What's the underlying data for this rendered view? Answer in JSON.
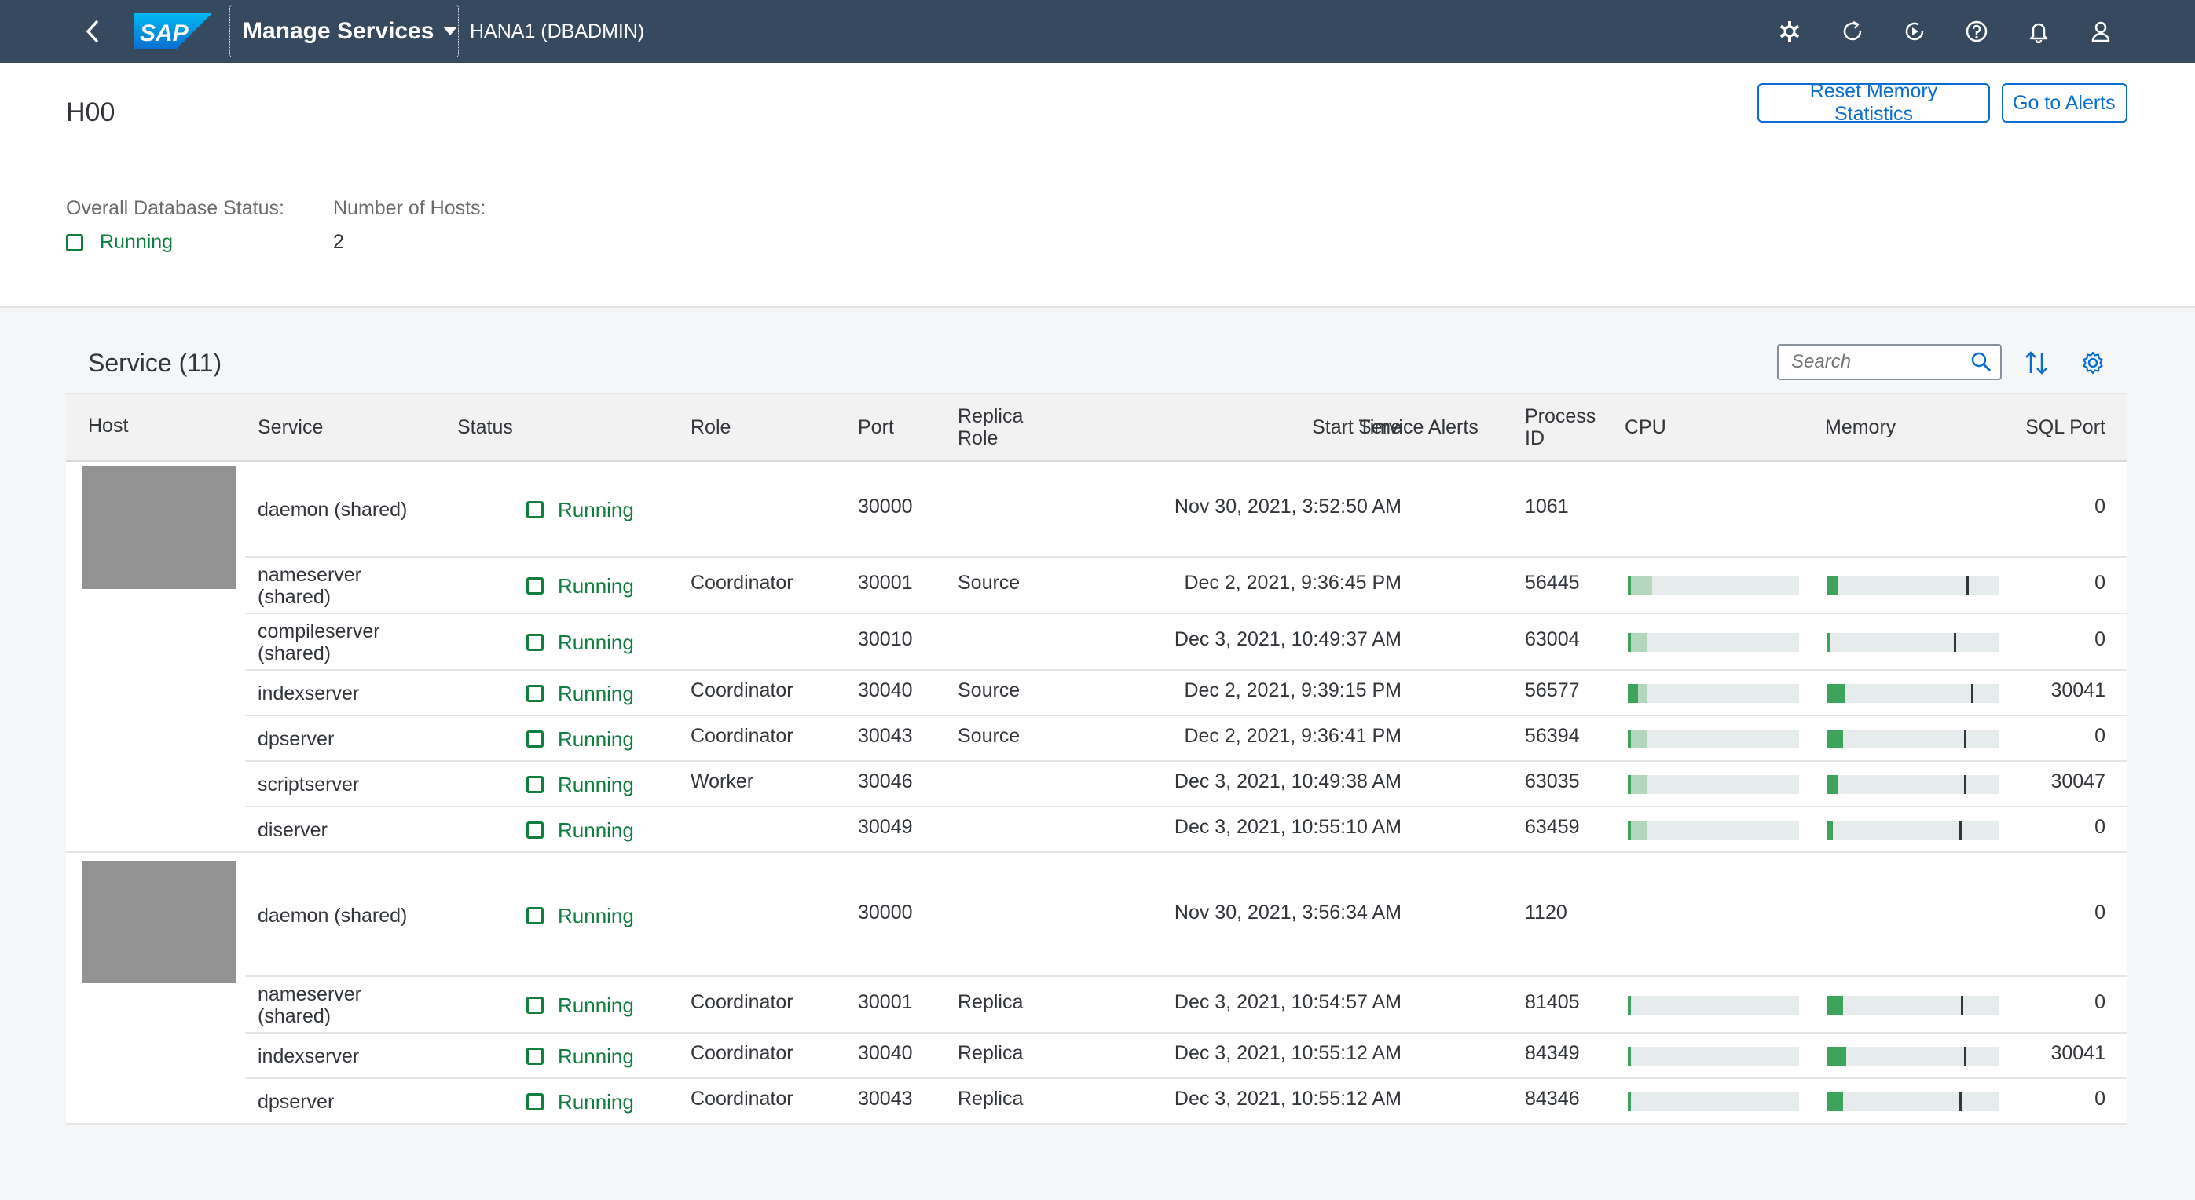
{
  "shell": {
    "back_label": "Back",
    "logo_text": "SAP",
    "app_menu_label": "Manage Services",
    "system": "HANA1 (DBADMIN)",
    "icons": [
      "product-switch-icon",
      "refresh-icon",
      "run-icon",
      "help-icon",
      "notification-bell-icon",
      "user-avatar-icon"
    ]
  },
  "header": {
    "title": "H00",
    "reset_memory_label": "Reset Memory Statistics",
    "go_to_alerts_label": "Go to Alerts",
    "overall_status_label": "Overall Database Status:",
    "overall_status_value": "Running",
    "hosts_label": "Number of Hosts:",
    "hosts_value": "2"
  },
  "table": {
    "title": "Service (11)",
    "search_placeholder": "Search",
    "columns": {
      "host": "Host",
      "service": "Service",
      "status": "Status",
      "role": "Role",
      "port": "Port",
      "replica_role_1": "Replica",
      "replica_role_2": "Role",
      "start_time": "Start Time",
      "service_alerts": "Service Alerts",
      "process_id_1": "Process",
      "process_id_2": "ID",
      "cpu": "CPU",
      "memory": "Memory",
      "sql_port": "SQL Port"
    },
    "groups": [
      {
        "rows": [
          {
            "service": "daemon (shared)",
            "status": "Running",
            "role": "",
            "port": "30000",
            "replica": "",
            "start": "Nov 30, 2021, 3:52:50 AM",
            "pid": "1061",
            "sql": "0",
            "cpu": null,
            "mem": null
          },
          {
            "service": "nameserver (shared)",
            "status": "Running",
            "role": "Coordinator",
            "port": "30001",
            "replica": "Source",
            "start": "Dec 2, 2021, 9:36:45 PM",
            "pid": "56445",
            "sql": "0",
            "cpu": [
              0.14,
              0.02
            ],
            "mem": [
              0.06,
              0.81
            ]
          },
          {
            "service": "compileserver (shared)",
            "status": "Running",
            "role": "",
            "port": "30010",
            "replica": "",
            "start": "Dec 3, 2021, 10:49:37 AM",
            "pid": "63004",
            "sql": "0",
            "cpu": [
              0.11,
              0.02
            ],
            "mem": [
              0.02,
              0.74
            ]
          },
          {
            "service": "indexserver",
            "status": "Running",
            "role": "Coordinator",
            "port": "30040",
            "replica": "Source",
            "start": "Dec 2, 2021, 9:39:15 PM",
            "pid": "56577",
            "sql": "30041",
            "cpu": [
              0.11,
              0.06
            ],
            "mem": [
              0.1,
              0.84
            ]
          },
          {
            "service": "dpserver",
            "status": "Running",
            "role": "Coordinator",
            "port": "30043",
            "replica": "Source",
            "start": "Dec 2, 2021, 9:36:41 PM",
            "pid": "56394",
            "sql": "0",
            "cpu": [
              0.11,
              0.02
            ],
            "mem": [
              0.09,
              0.8
            ]
          },
          {
            "service": "scriptserver",
            "status": "Running",
            "role": "Worker",
            "port": "30046",
            "replica": "",
            "start": "Dec 3, 2021, 10:49:38 AM",
            "pid": "63035",
            "sql": "30047",
            "cpu": [
              0.11,
              0.02
            ],
            "mem": [
              0.06,
              0.8
            ]
          },
          {
            "service": "diserver",
            "status": "Running",
            "role": "",
            "port": "30049",
            "replica": "",
            "start": "Dec 3, 2021, 10:55:10 AM",
            "pid": "63459",
            "sql": "0",
            "cpu": [
              0.11,
              0.02
            ],
            "mem": [
              0.03,
              0.77
            ]
          }
        ]
      },
      {
        "rows": [
          {
            "service": "daemon (shared)",
            "status": "Running",
            "role": "",
            "port": "30000",
            "replica": "",
            "start": "Nov 30, 2021, 3:56:34 AM",
            "pid": "1120",
            "sql": "0",
            "cpu": null,
            "mem": null
          },
          {
            "service": "nameserver (shared)",
            "status": "Running",
            "role": "Coordinator",
            "port": "30001",
            "replica": "Replica",
            "start": "Dec 3, 2021, 10:54:57 AM",
            "pid": "81405",
            "sql": "0",
            "cpu": [
              0.0,
              0.02
            ],
            "mem": [
              0.09,
              0.78
            ]
          },
          {
            "service": "indexserver",
            "status": "Running",
            "role": "Coordinator",
            "port": "30040",
            "replica": "Replica",
            "start": "Dec 3, 2021, 10:55:12 AM",
            "pid": "84349",
            "sql": "30041",
            "cpu": [
              0.0,
              0.02
            ],
            "mem": [
              0.11,
              0.8
            ]
          },
          {
            "service": "dpserver",
            "status": "Running",
            "role": "Coordinator",
            "port": "30043",
            "replica": "Replica",
            "start": "Dec 3, 2021, 10:55:12 AM",
            "pid": "84346",
            "sql": "0",
            "cpu": [
              0.0,
              0.02
            ],
            "mem": [
              0.09,
              0.77
            ]
          }
        ]
      }
    ]
  },
  "colors": {
    "shell": "#354a5f",
    "accent": "#0a6ed1",
    "positive": "#107e3e",
    "bar_light": "#b4d6bd",
    "bar_dark": "#3fa45b"
  }
}
